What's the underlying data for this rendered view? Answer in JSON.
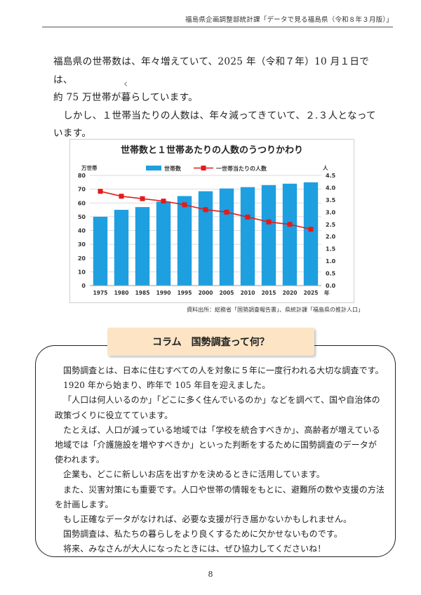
{
  "header": {
    "text": "福島県企画調整部統計課「データで見る福島県（令和８年３月版）」"
  },
  "intro": {
    "line1": "福島県の世帯数は、年々増えていて、2025 年（令和７年）10 月１日では、",
    "line2_before": "約 75 万世帯が",
    "line2_ruby_base": "暮",
    "line2_ruby_text": "く",
    "line2_after": "らしています。",
    "para2": "しかし、１世帯当たりの人数は、年々減ってきていて、２.３人となっています。"
  },
  "chart_data": {
    "type": "bar",
    "title": "世帯数と１世帯あたりの人数のうつりかわり",
    "categories": [
      "1975",
      "1980",
      "1985",
      "1990",
      "1995",
      "2000",
      "2005",
      "2010",
      "2015",
      "2020",
      "2025"
    ],
    "x_suffix": "年",
    "series": [
      {
        "name": "世帯数",
        "kind": "bar",
        "axis": "left",
        "color": "#1e9fe0",
        "values": [
          50,
          55,
          57,
          61,
          65,
          68.5,
          70.5,
          71.5,
          73,
          74,
          75
        ]
      },
      {
        "name": "一世帯当たりの人数",
        "kind": "line",
        "axis": "right",
        "color": "#e31b1b",
        "values": [
          3.85,
          3.65,
          3.55,
          3.45,
          3.3,
          3.1,
          3.0,
          2.8,
          2.6,
          2.5,
          2.3
        ]
      }
    ],
    "ylabel_left": "万世帯",
    "ylabel_right": "人",
    "ylim_left": [
      0,
      80
    ],
    "ylim_right": [
      0,
      4.5
    ],
    "yticks_left": [
      "0",
      "10",
      "20",
      "30",
      "40",
      "50",
      "60",
      "70",
      "80"
    ],
    "yticks_right": [
      "0.0",
      "0.5",
      "1.0",
      "1.5",
      "2.0",
      "2.5",
      "3.0",
      "3.5",
      "4.0",
      "4.5"
    ],
    "grid": true,
    "legend_position": "top"
  },
  "source": "資料出所：総務省「国勢調査報告書」、県統計課「福島県の推計人口」",
  "column": {
    "title": "コラム　国勢調査って何？",
    "paragraphs": [
      "国勢調査とは、日本に住むすべての人を対象に５年に一度行われる大切な調査です。",
      "1920 年から始まり、昨年で 105 年目を迎えました。",
      "「人口は何人いるのか」「どこに多く住んでいるのか」などを調べて、国や自治体の政策づくりに役立てています。",
      "たとえば、人口が減っている地域では「学校を統合すべきか」、高齢者が増えている地域では「介護施設を増やすべきか」といった判断をするために国勢調査のデータが使われます。",
      "企業も、どこに新しいお店を出すかを決めるときに活用しています。",
      "また、災害対策にも重要です。人口や世帯の情報をもとに、避難所の数や支援の方法を計画します。",
      "もし正確なデータがなければ、必要な支援が行き届かないかもしれません。",
      "国勢調査は、私たちの暮らしをより良くするために欠かせないものです。",
      "将来、みなさんが大人になったときには、ぜひ協力してくださいね！"
    ]
  },
  "page_number": "8"
}
